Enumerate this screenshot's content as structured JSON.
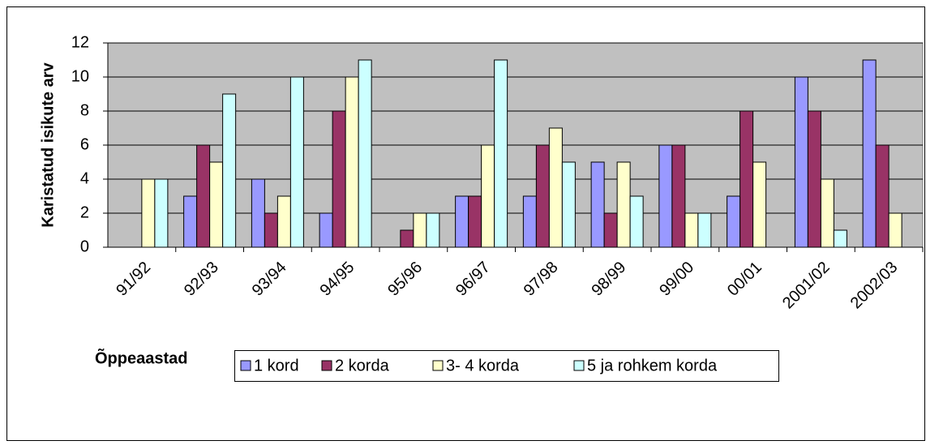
{
  "chart_data": {
    "type": "bar",
    "y_label": "Karistatud isikute arv",
    "x_label": "Õppeaastad",
    "categories": [
      "91/92",
      "92/93",
      "93/94",
      "94/95",
      "95/96",
      "96/97",
      "97/98",
      "98/99",
      "99/00",
      "00/01",
      "2001/02",
      "2002/03"
    ],
    "series": [
      {
        "name": "1 kord",
        "color": "#9999ff",
        "values": [
          0,
          3,
          4,
          2,
          0,
          3,
          3,
          5,
          6,
          3,
          10,
          11
        ]
      },
      {
        "name": "2 korda",
        "color": "#993366",
        "values": [
          0,
          6,
          2,
          8,
          1,
          3,
          6,
          2,
          6,
          8,
          8,
          6
        ]
      },
      {
        "name": "3- 4 korda",
        "color": "#ffffcc",
        "values": [
          4,
          5,
          3,
          10,
          2,
          6,
          7,
          5,
          2,
          5,
          4,
          2
        ]
      },
      {
        "name": "5 ja rohkem korda",
        "color": "#ccffff",
        "values": [
          4,
          9,
          10,
          11,
          2,
          11,
          5,
          3,
          2,
          0,
          1,
          0
        ]
      }
    ],
    "ylim": [
      0,
      12
    ],
    "yticks": [
      0,
      2,
      4,
      6,
      8,
      10,
      12
    ],
    "grid": true,
    "legend": "bottom"
  }
}
